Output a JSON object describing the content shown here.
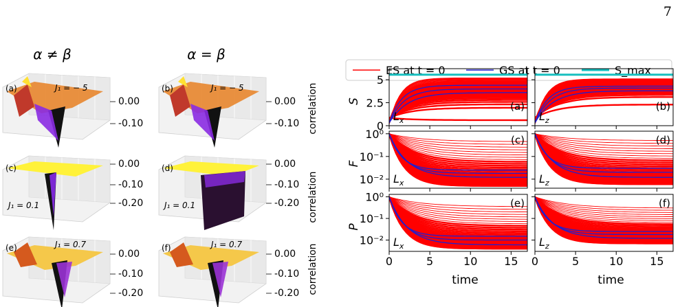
{
  "page": {
    "number": "7"
  },
  "left_figure": {
    "column_headers": [
      "α ≠ β",
      "α = β"
    ],
    "zaxis_label": "correlation",
    "panels": [
      {
        "id": "a",
        "label": "(a)",
        "j_label": "J₁ = − 5",
        "zticks": [
          "0.00",
          "-0.10"
        ]
      },
      {
        "id": "b",
        "label": "(b)",
        "j_label": "J₁ = − 5",
        "zticks": [
          "0.00",
          "-0.10"
        ]
      },
      {
        "id": "c",
        "label": "(c)",
        "j_label": "J₁ = 0.1",
        "zticks": [
          "0.00",
          "-0.10",
          "-0.20"
        ]
      },
      {
        "id": "d",
        "label": "(d)",
        "j_label": "J₁ = 0.1",
        "zticks": [
          "0.00",
          "-0.10",
          "-0.20"
        ]
      },
      {
        "id": "e",
        "label": "(e)",
        "j_label": "J₁ = 0.7",
        "zticks": [
          "0.00",
          "-0.10",
          "-0.20"
        ]
      },
      {
        "id": "f",
        "label": "(f)",
        "j_label": "J₁ = 0.7",
        "zticks": [
          "0.00",
          "-0.10",
          "-0.20"
        ]
      }
    ]
  },
  "chart_data": {
    "type": "line",
    "legend": {
      "placement": "top",
      "entries": [
        {
          "name": "ES at t = 0",
          "color": "#ff0000"
        },
        {
          "name": "GS at t = 0",
          "color": "#1f1fd0"
        },
        {
          "name": "S_max",
          "color": "#17bfbf"
        }
      ]
    },
    "xlabel": "time",
    "xlim": [
      0,
      17
    ],
    "xticks": [
      "0",
      "5",
      "10",
      "15"
    ],
    "rows": [
      {
        "ylabel": "S",
        "scale": "linear",
        "ylim": [
          0,
          6.2
        ],
        "yticks": [
          "0",
          "2.5",
          "5"
        ]
      },
      {
        "ylabel": "F",
        "scale": "log",
        "ylim": [
          0.004,
          1.3
        ],
        "yticks": [
          "10⁰",
          "10⁻¹",
          "10⁻²"
        ]
      },
      {
        "ylabel": "P",
        "scale": "log",
        "ylim": [
          0.003,
          1.3
        ],
        "yticks": [
          "10⁰",
          "10⁻¹",
          "10⁻²"
        ]
      }
    ],
    "panels": [
      {
        "id": "a",
        "label": "(a)",
        "corner": "L_x",
        "row": 0,
        "s_max": 5.55,
        "gs_lines": [
          3.6,
          4.0,
          4.4
        ],
        "es_band": [
          0.6,
          5.2
        ]
      },
      {
        "id": "b",
        "label": "(b)",
        "corner": "L_z",
        "row": 0,
        "s_max": 5.55,
        "gs_lines": [
          3.8,
          4.1,
          4.3
        ],
        "es_band": [
          2.3,
          5.1
        ]
      },
      {
        "id": "c",
        "label": "(c)",
        "corner": "L_x",
        "row": 1,
        "gs_lines": [
          0.012,
          0.018,
          0.025
        ],
        "es_band": [
          0.005,
          0.45
        ]
      },
      {
        "id": "d",
        "label": "(d)",
        "corner": "L_z",
        "row": 1,
        "gs_lines": [
          0.012,
          0.02,
          0.03
        ],
        "es_band": [
          0.006,
          0.5
        ]
      },
      {
        "id": "e",
        "label": "(e)",
        "corner": "L_x",
        "row": 2,
        "gs_lines": [
          0.006,
          0.01,
          0.015
        ],
        "es_band": [
          0.004,
          0.35
        ]
      },
      {
        "id": "f",
        "label": "(f)",
        "corner": "L_z",
        "row": 2,
        "gs_lines": [
          0.012,
          0.018,
          0.025
        ],
        "es_band": [
          0.007,
          0.3
        ]
      }
    ]
  }
}
